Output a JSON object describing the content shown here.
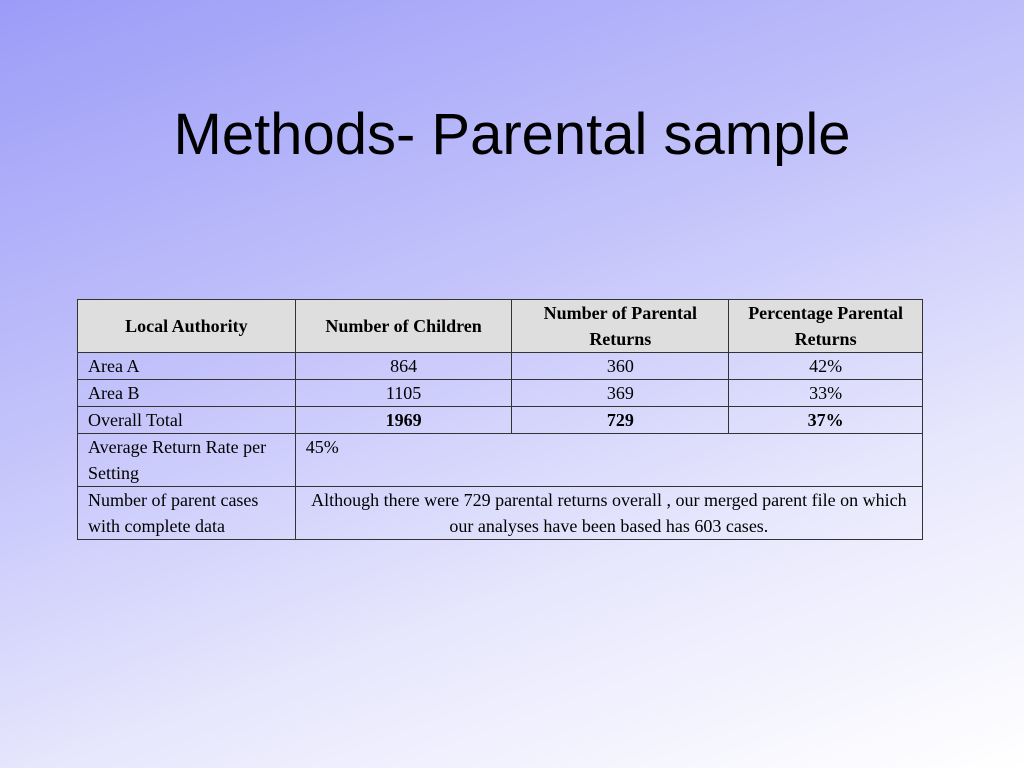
{
  "title": "Methods- Parental sample",
  "table": {
    "header": [
      "Local Authority",
      "Number of Children",
      "Number of Parental Returns",
      "Percentage Parental Returns"
    ],
    "rows": [
      [
        "Area A",
        "864",
        "360",
        "42%"
      ],
      [
        "Area B",
        "1105",
        "369",
        "33%"
      ],
      [
        "Overall Total",
        "1969",
        "729",
        "37%"
      ],
      [
        "Average Return Rate per Setting",
        "45%"
      ],
      [
        "Number of parent cases with complete data",
        "Although there were 729 parental returns overall , our merged parent file on which our analyses have been based has 603 cases."
      ]
    ]
  }
}
